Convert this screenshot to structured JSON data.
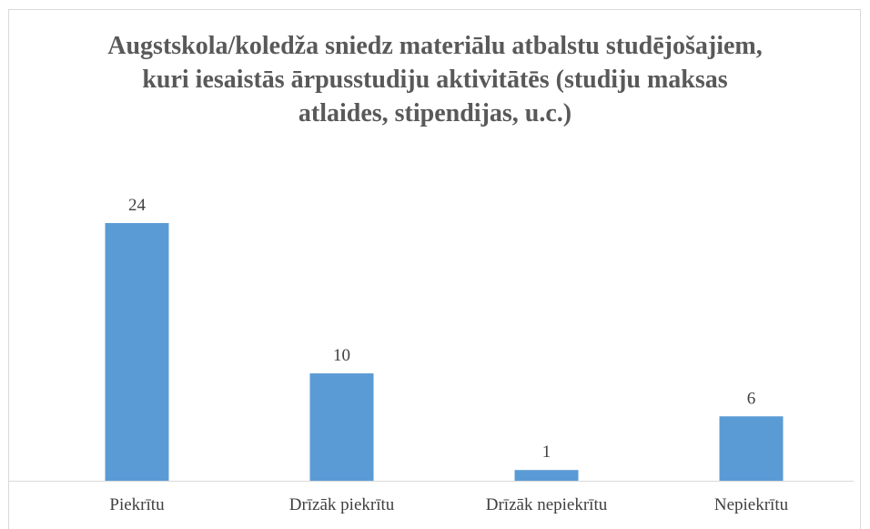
{
  "chart_data": {
    "type": "bar",
    "title": "Augstskola/koledža sniedz materiālu atbalstu studējošajiem, kuri iesaistās ārpusstudiju aktivitātēs (studiju maksas atlaides, stipendijas, u.c.)",
    "categories": [
      "Piekrītu",
      "Drīzāk piekrītu",
      "Drīzāk nepiekrītu",
      "Nepiekrītu"
    ],
    "values": [
      24,
      10,
      1,
      6
    ],
    "color": "#5b9bd5"
  }
}
